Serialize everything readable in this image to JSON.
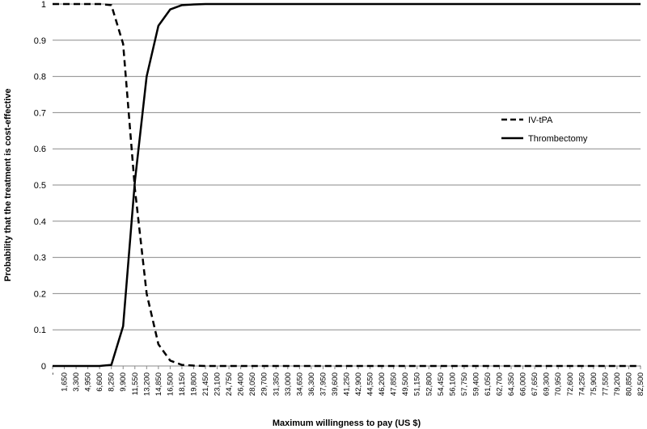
{
  "chart_data": {
    "type": "line",
    "title": "",
    "xlabel": "Maximum willingness to pay (US $)",
    "ylabel": "Probability that the treatment is cost-effective",
    "ylim": [
      0,
      1
    ],
    "yticks": [
      "0",
      "0.1",
      "0.2",
      "0.3",
      "0.4",
      "0.5",
      "0.6",
      "0.7",
      "0.8",
      "0.9",
      "1"
    ],
    "grid": true,
    "legend_position": "right",
    "categories": [
      "-",
      "1,650",
      "3,300",
      "4,950",
      "6,600",
      "8,250",
      "9,900",
      "11,550",
      "13,200",
      "14,850",
      "16,500",
      "18,150",
      "19,800",
      "21,450",
      "23,100",
      "24,750",
      "26,400",
      "28,050",
      "29,700",
      "31,350",
      "33,000",
      "34,650",
      "36,300",
      "37,950",
      "39,600",
      "41,250",
      "42,900",
      "44,550",
      "46,200",
      "47,850",
      "49,500",
      "51,150",
      "52,800",
      "54,450",
      "56,100",
      "57,750",
      "59,400",
      "61,050",
      "62,700",
      "64,350",
      "66,000",
      "67,650",
      "69,300",
      "70,950",
      "72,600",
      "74,250",
      "75,900",
      "77,550",
      "79,200",
      "80,850",
      "82,500"
    ],
    "series": [
      {
        "name": "IV-tPA",
        "style": "dashed",
        "color": "#000000",
        "values": [
          1,
          1,
          1,
          1,
          1,
          0.997,
          0.89,
          0.49,
          0.2,
          0.06,
          0.015,
          0.003,
          0.001,
          0,
          0,
          0,
          0,
          0,
          0,
          0,
          0,
          0,
          0,
          0,
          0,
          0,
          0,
          0,
          0,
          0,
          0,
          0,
          0,
          0,
          0,
          0,
          0,
          0,
          0,
          0,
          0,
          0,
          0,
          0,
          0,
          0,
          0,
          0,
          0,
          0,
          0
        ]
      },
      {
        "name": "Thrombectomy",
        "style": "solid",
        "color": "#000000",
        "values": [
          0,
          0,
          0,
          0,
          0,
          0.003,
          0.11,
          0.51,
          0.8,
          0.94,
          0.985,
          0.997,
          0.999,
          1,
          1,
          1,
          1,
          1,
          1,
          1,
          1,
          1,
          1,
          1,
          1,
          1,
          1,
          1,
          1,
          1,
          1,
          1,
          1,
          1,
          1,
          1,
          1,
          1,
          1,
          1,
          1,
          1,
          1,
          1,
          1,
          1,
          1,
          1,
          1,
          1,
          1
        ]
      }
    ]
  }
}
